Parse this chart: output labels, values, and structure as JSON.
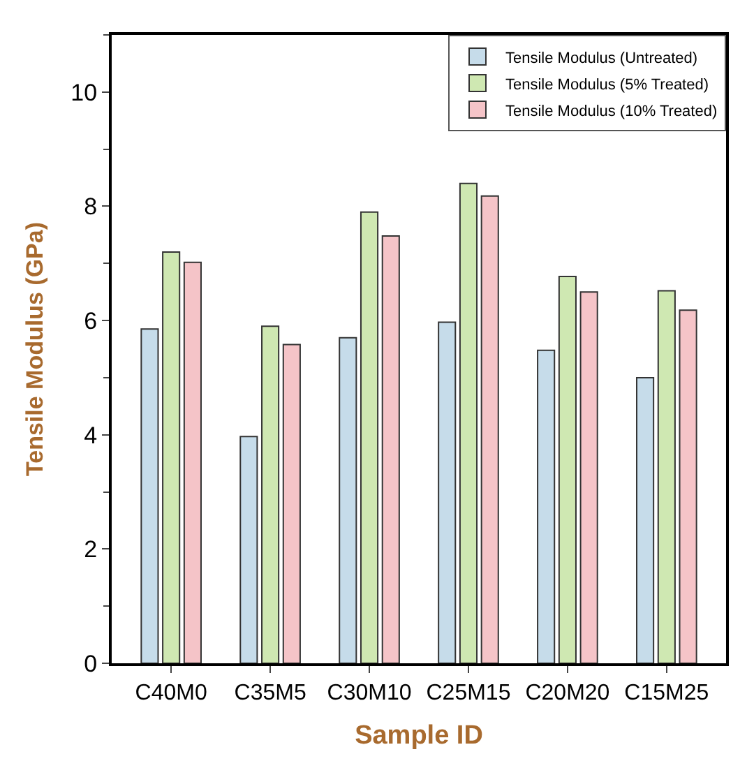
{
  "chart_data": {
    "type": "bar",
    "xlabel": "Sample ID",
    "ylabel": "Tensile Modulus (GPa)",
    "categories": [
      "C40M0",
      "C35M5",
      "C30M10",
      "C25M15",
      "C20M20",
      "C15M25"
    ],
    "series": [
      {
        "name": "Tensile Modulus (Untreated)",
        "color": "#c6dcea",
        "values": [
          5.85,
          3.97,
          5.7,
          5.97,
          5.48,
          5.0
        ]
      },
      {
        "name": "Tensile Modulus (5% Treated)",
        "color": "#cfe8b2",
        "values": [
          7.2,
          5.9,
          7.9,
          8.4,
          6.77,
          6.52
        ]
      },
      {
        "name": "Tensile Modulus (10% Treated)",
        "color": "#f5c4c8",
        "values": [
          7.02,
          5.58,
          7.48,
          8.18,
          6.5,
          6.18
        ]
      }
    ],
    "ylim": [
      0,
      11
    ],
    "yticks": [
      0,
      2,
      4,
      6,
      8,
      10
    ],
    "legend": "top right"
  }
}
